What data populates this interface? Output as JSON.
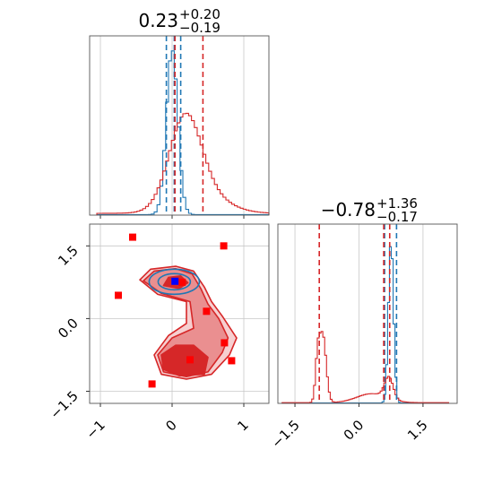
{
  "colors": {
    "red": "#d62728",
    "blue": "#1f77b4",
    "redFillDark": "#d62728",
    "redFillMid": "#ea8f90",
    "redFillLight": "#f6cfd0",
    "point": "#ff0000",
    "pointBlue": "#0000ff"
  },
  "chart_data": [
    {
      "type": "histogram",
      "panel": "top-left",
      "title": {
        "main": "0.23",
        "sup": "+0.20",
        "sub": "−0.19"
      },
      "xlim": [
        -1.15,
        1.35
      ],
      "series": [
        {
          "name": "",
          "color": "blue",
          "peak": 0.0,
          "width": 0.08,
          "height": 0.92
        },
        {
          "name": "",
          "color": "red",
          "peak": 0.18,
          "width": 0.22,
          "height": 0.46
        }
      ],
      "vlines": [
        {
          "x": -0.08,
          "color": "blue"
        },
        {
          "x": 0.03,
          "color": "blue"
        },
        {
          "x": 0.12,
          "color": "blue"
        },
        {
          "x": 0.04,
          "color": "red"
        },
        {
          "x": 0.43,
          "color": "red"
        }
      ],
      "xticks": [
        -1,
        0,
        1
      ]
    },
    {
      "type": "contour",
      "panel": "bottom-left",
      "xlim": [
        -1.15,
        1.35
      ],
      "ylim": [
        -1.75,
        1.95
      ],
      "xticks": [
        -1,
        0,
        1
      ],
      "yticks": [
        1.5,
        0.0,
        -1.5
      ],
      "xtick_labels": [
        "−1",
        "0",
        "1"
      ],
      "ytick_labels": [
        "1.5",
        "0.0",
        "−1.5"
      ],
      "markers_red": [
        [
          -0.55,
          1.68
        ],
        [
          0.72,
          1.5
        ],
        [
          -0.75,
          0.48
        ],
        [
          0.48,
          0.15
        ],
        [
          0.73,
          -0.5
        ],
        [
          0.25,
          -0.85
        ],
        [
          0.83,
          -0.87
        ],
        [
          -0.28,
          -1.35
        ],
        [
          0.14,
          0.75
        ]
      ],
      "markers_blue": [
        [
          0.04,
          0.77
        ]
      ]
    },
    {
      "type": "histogram",
      "panel": "bottom-right",
      "title": {
        "main": "−0.78",
        "sup": "+1.36",
        "sub": "−0.17"
      },
      "xlim": [
        -1.9,
        2.3
      ],
      "xticks": [
        -1.5,
        0.0,
        1.5
      ],
      "xtick_labels": [
        "−1.5",
        "0.0",
        "1.5"
      ],
      "series": [
        {
          "name": "",
          "color": "blue",
          "peak": 0.75,
          "width": 0.06,
          "height": 0.9
        },
        {
          "name": "",
          "color": "red",
          "peak": -0.85,
          "width": 0.08,
          "height": 0.38
        }
      ],
      "vlines": [
        {
          "x": 0.6,
          "color": "blue"
        },
        {
          "x": 0.88,
          "color": "blue"
        },
        {
          "x": -0.93,
          "color": "red"
        },
        {
          "x": 0.58,
          "color": "red"
        },
        {
          "x": 0.72,
          "color": "red"
        }
      ]
    }
  ]
}
